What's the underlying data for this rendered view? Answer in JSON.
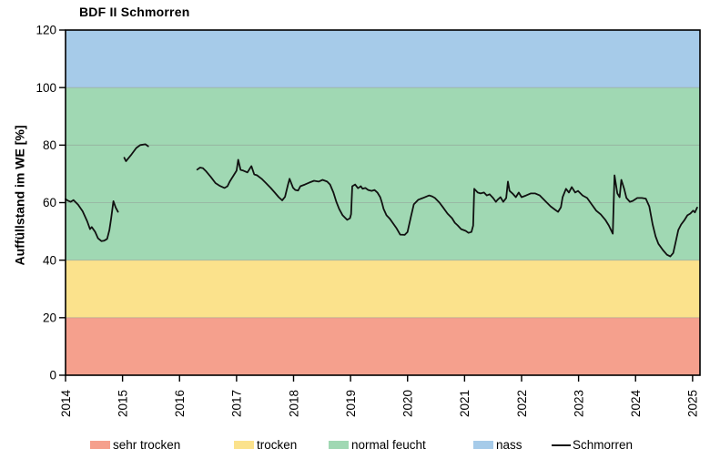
{
  "header": {
    "title": "BDF II Schmorren"
  },
  "chart_data": {
    "type": "line",
    "title": "BDF II Schmorren",
    "xlabel": "",
    "ylabel": "Auffüllstand im WE [%]",
    "xlim": [
      2014,
      2025.13
    ],
    "ylim": [
      0,
      120
    ],
    "x_ticks": [
      2014,
      2015,
      2016,
      2017,
      2018,
      2019,
      2020,
      2021,
      2022,
      2023,
      2024,
      2025
    ],
    "y_ticks": [
      0,
      20,
      40,
      60,
      80,
      100,
      120
    ],
    "grid": "horizontal",
    "legend_position": "bottom",
    "bands": [
      {
        "key": "sehr-trocken",
        "label": "sehr trocken",
        "from": 0,
        "to": 20,
        "color": "#F5A08D"
      },
      {
        "key": "trocken",
        "label": "trocken",
        "from": 20,
        "to": 40,
        "color": "#FBE28C"
      },
      {
        "key": "normal-feucht",
        "label": "normal feucht",
        "from": 40,
        "to": 100,
        "color": "#A0D8B3"
      },
      {
        "key": "nass",
        "label": "nass",
        "from": 100,
        "to": 120,
        "color": "#A6CBE9"
      }
    ],
    "series": [
      {
        "name": "Schmorren",
        "color": "#111111",
        "segments": [
          [
            [
              2014.0,
              61.2
            ],
            [
              2014.05,
              60.6
            ],
            [
              2014.09,
              60.3
            ],
            [
              2014.14,
              60.9
            ],
            [
              2014.22,
              59.3
            ],
            [
              2014.3,
              57.0
            ],
            [
              2014.38,
              53.5
            ],
            [
              2014.43,
              50.8
            ],
            [
              2014.46,
              51.5
            ],
            [
              2014.52,
              49.8
            ],
            [
              2014.57,
              47.6
            ],
            [
              2014.63,
              46.6
            ],
            [
              2014.68,
              46.8
            ],
            [
              2014.73,
              47.4
            ],
            [
              2014.77,
              50.5
            ],
            [
              2014.8,
              54.5
            ],
            [
              2014.84,
              60.5
            ],
            [
              2014.88,
              58.3
            ],
            [
              2014.92,
              56.8
            ]
          ],
          [
            [
              2015.03,
              75.6
            ],
            [
              2015.06,
              74.4
            ],
            [
              2015.1,
              75.4
            ],
            [
              2015.16,
              76.8
            ],
            [
              2015.24,
              79.0
            ],
            [
              2015.31,
              80.0
            ],
            [
              2015.4,
              80.3
            ],
            [
              2015.45,
              79.6
            ]
          ],
          [
            [
              2016.31,
              71.5
            ],
            [
              2016.36,
              72.2
            ],
            [
              2016.41,
              72.0
            ],
            [
              2016.47,
              70.8
            ],
            [
              2016.55,
              68.9
            ],
            [
              2016.63,
              66.8
            ],
            [
              2016.71,
              65.8
            ],
            [
              2016.79,
              65.1
            ],
            [
              2016.84,
              65.7
            ],
            [
              2016.88,
              67.3
            ],
            [
              2016.95,
              69.5
            ],
            [
              2017.0,
              71.1
            ],
            [
              2017.03,
              74.9
            ],
            [
              2017.07,
              71.4
            ],
            [
              2017.12,
              71.1
            ],
            [
              2017.19,
              70.5
            ],
            [
              2017.26,
              72.7
            ],
            [
              2017.31,
              69.8
            ],
            [
              2017.36,
              69.5
            ],
            [
              2017.44,
              68.3
            ],
            [
              2017.52,
              66.7
            ],
            [
              2017.6,
              65.1
            ],
            [
              2017.67,
              63.5
            ],
            [
              2017.74,
              61.9
            ],
            [
              2017.8,
              60.8
            ],
            [
              2017.85,
              62.0
            ],
            [
              2017.9,
              66.0
            ],
            [
              2017.93,
              68.3
            ],
            [
              2017.99,
              65.2
            ],
            [
              2018.03,
              64.4
            ],
            [
              2018.08,
              64.2
            ],
            [
              2018.12,
              65.7
            ],
            [
              2018.2,
              66.3
            ],
            [
              2018.28,
              67.0
            ],
            [
              2018.36,
              67.6
            ],
            [
              2018.44,
              67.3
            ],
            [
              2018.51,
              67.9
            ],
            [
              2018.59,
              67.3
            ],
            [
              2018.64,
              66.3
            ],
            [
              2018.7,
              63.5
            ],
            [
              2018.75,
              60.3
            ],
            [
              2018.8,
              57.8
            ],
            [
              2018.86,
              55.6
            ],
            [
              2018.94,
              54.0
            ],
            [
              2018.99,
              54.6
            ],
            [
              2019.01,
              56.0
            ],
            [
              2019.03,
              65.7
            ],
            [
              2019.08,
              66.3
            ],
            [
              2019.13,
              65.0
            ],
            [
              2019.18,
              65.7
            ],
            [
              2019.21,
              64.8
            ],
            [
              2019.26,
              65.1
            ],
            [
              2019.31,
              64.4
            ],
            [
              2019.37,
              64.1
            ],
            [
              2019.42,
              64.4
            ],
            [
              2019.47,
              63.5
            ],
            [
              2019.52,
              61.9
            ],
            [
              2019.55,
              60.0
            ],
            [
              2019.58,
              57.8
            ],
            [
              2019.63,
              55.6
            ],
            [
              2019.68,
              54.6
            ],
            [
              2019.71,
              53.8
            ],
            [
              2019.76,
              52.4
            ],
            [
              2019.81,
              51.0
            ],
            [
              2019.87,
              48.9
            ],
            [
              2019.95,
              48.8
            ],
            [
              2020.0,
              49.8
            ],
            [
              2020.06,
              55.2
            ],
            [
              2020.11,
              59.4
            ],
            [
              2020.19,
              61.0
            ],
            [
              2020.27,
              61.6
            ],
            [
              2020.38,
              62.5
            ],
            [
              2020.43,
              62.2
            ],
            [
              2020.48,
              61.6
            ],
            [
              2020.56,
              60.0
            ],
            [
              2020.62,
              58.4
            ],
            [
              2020.7,
              56.2
            ],
            [
              2020.78,
              54.6
            ],
            [
              2020.83,
              53.0
            ],
            [
              2020.88,
              52.1
            ],
            [
              2020.94,
              50.8
            ],
            [
              2021.02,
              50.2
            ],
            [
              2021.07,
              49.5
            ],
            [
              2021.12,
              49.8
            ],
            [
              2021.15,
              52.0
            ],
            [
              2021.17,
              64.8
            ],
            [
              2021.23,
              63.5
            ],
            [
              2021.28,
              63.2
            ],
            [
              2021.34,
              63.5
            ],
            [
              2021.39,
              62.5
            ],
            [
              2021.44,
              62.9
            ],
            [
              2021.5,
              61.6
            ],
            [
              2021.55,
              60.3
            ],
            [
              2021.58,
              61.0
            ],
            [
              2021.63,
              61.9
            ],
            [
              2021.68,
              60.3
            ],
            [
              2021.73,
              61.6
            ],
            [
              2021.76,
              67.3
            ],
            [
              2021.79,
              64.1
            ],
            [
              2021.84,
              63.2
            ],
            [
              2021.9,
              61.9
            ],
            [
              2021.95,
              63.5
            ],
            [
              2022.0,
              61.9
            ],
            [
              2022.08,
              62.5
            ],
            [
              2022.16,
              63.2
            ],
            [
              2022.24,
              63.2
            ],
            [
              2022.32,
              62.5
            ],
            [
              2022.43,
              60.3
            ],
            [
              2022.51,
              58.7
            ],
            [
              2022.59,
              57.5
            ],
            [
              2022.64,
              56.8
            ],
            [
              2022.69,
              58.4
            ],
            [
              2022.72,
              61.9
            ],
            [
              2022.78,
              64.8
            ],
            [
              2022.83,
              63.5
            ],
            [
              2022.88,
              65.4
            ],
            [
              2022.94,
              63.5
            ],
            [
              2022.99,
              64.1
            ],
            [
              2023.07,
              62.5
            ],
            [
              2023.15,
              61.6
            ],
            [
              2023.23,
              59.4
            ],
            [
              2023.31,
              57.2
            ],
            [
              2023.39,
              55.9
            ],
            [
              2023.47,
              54.0
            ],
            [
              2023.53,
              52.1
            ],
            [
              2023.6,
              49.2
            ],
            [
              2023.63,
              69.5
            ],
            [
              2023.68,
              63.2
            ],
            [
              2023.72,
              61.9
            ],
            [
              2023.75,
              67.9
            ],
            [
              2023.8,
              64.8
            ],
            [
              2023.84,
              61.6
            ],
            [
              2023.9,
              60.3
            ],
            [
              2023.95,
              60.6
            ],
            [
              2024.03,
              61.6
            ],
            [
              2024.11,
              61.6
            ],
            [
              2024.18,
              61.4
            ],
            [
              2024.24,
              58.7
            ],
            [
              2024.3,
              52.4
            ],
            [
              2024.35,
              48.3
            ],
            [
              2024.4,
              45.7
            ],
            [
              2024.48,
              43.5
            ],
            [
              2024.55,
              41.9
            ],
            [
              2024.61,
              41.3
            ],
            [
              2024.66,
              42.5
            ],
            [
              2024.7,
              46.0
            ],
            [
              2024.75,
              50.5
            ],
            [
              2024.8,
              52.4
            ],
            [
              2024.86,
              54.0
            ],
            [
              2024.91,
              55.6
            ],
            [
              2024.96,
              56.2
            ],
            [
              2025.01,
              57.2
            ],
            [
              2025.04,
              56.6
            ],
            [
              2025.08,
              58.3
            ]
          ]
        ]
      }
    ]
  },
  "legend": {
    "items": [
      {
        "label": "sehr trocken",
        "type": "swatch",
        "color": "#F5A08D"
      },
      {
        "label": "trocken",
        "type": "swatch",
        "color": "#FBE28C"
      },
      {
        "label": "normal feucht",
        "type": "swatch",
        "color": "#A0D8B3"
      },
      {
        "label": "nass",
        "type": "swatch",
        "color": "#A6CBE9"
      },
      {
        "label": "Schmorren",
        "type": "line",
        "color": "#111111"
      }
    ]
  }
}
